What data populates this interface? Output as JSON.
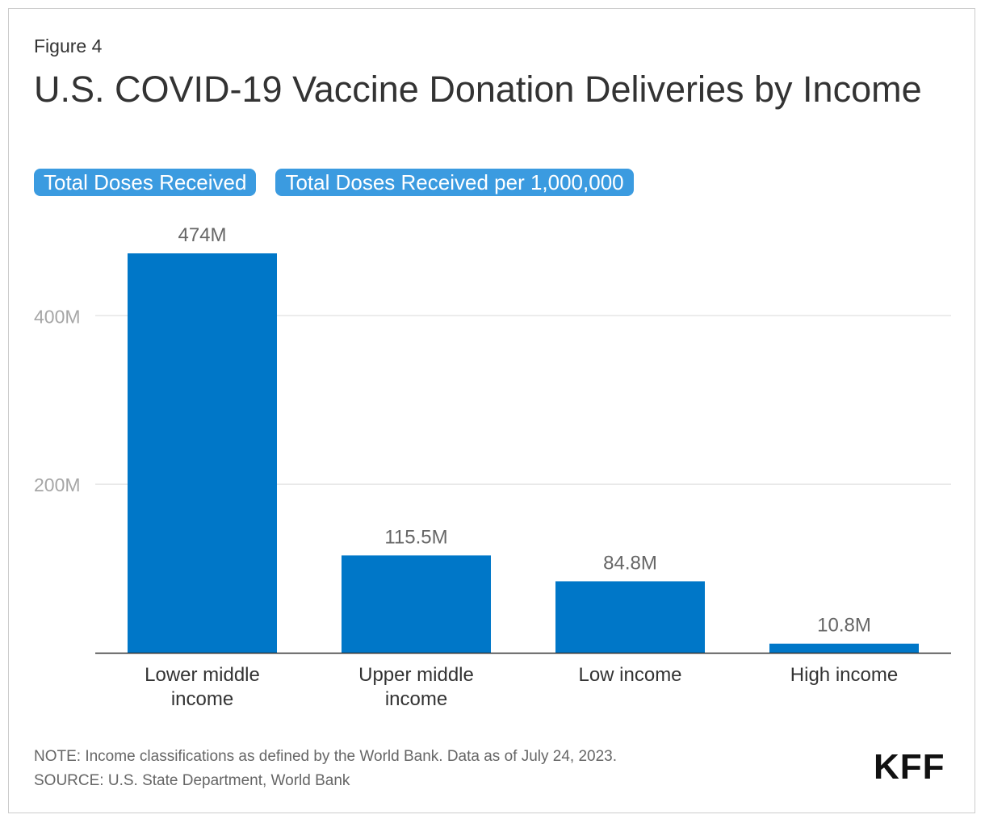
{
  "figure_label": "Figure 4",
  "title": "U.S. COVID-19 Vaccine Donation Deliveries by Income",
  "toggles": [
    {
      "label": "Total Doses Received",
      "active": true
    },
    {
      "label": "Total Doses Received per 1,000,000",
      "active": false
    }
  ],
  "colors": {
    "bar": "#0077c8",
    "toggle": "#3b9be0",
    "grid": "#e6e6e6",
    "axis": "#333333"
  },
  "chart_data": {
    "type": "bar",
    "title": "U.S. COVID-19 Vaccine Donation Deliveries by Income",
    "xlabel": "",
    "ylabel": "",
    "categories": [
      [
        "Lower middle",
        "income"
      ],
      [
        "Upper middle",
        "income"
      ],
      [
        "Low income"
      ],
      [
        "High income"
      ]
    ],
    "values": [
      474,
      115.5,
      84.8,
      10.8
    ],
    "value_labels": [
      "474M",
      "115.5M",
      "84.8M",
      "10.8M"
    ],
    "units": "M",
    "ylim": [
      0,
      474
    ],
    "yticks": [
      200,
      400
    ],
    "ytick_labels": [
      "200M",
      "400M"
    ],
    "grid": true,
    "legend": "none"
  },
  "notes": {
    "note": "NOTE: Income classifications as defined by the World Bank. Data as of July 24, 2023.",
    "source": "SOURCE: U.S. State Department, World Bank"
  },
  "logo_text": "KFF"
}
